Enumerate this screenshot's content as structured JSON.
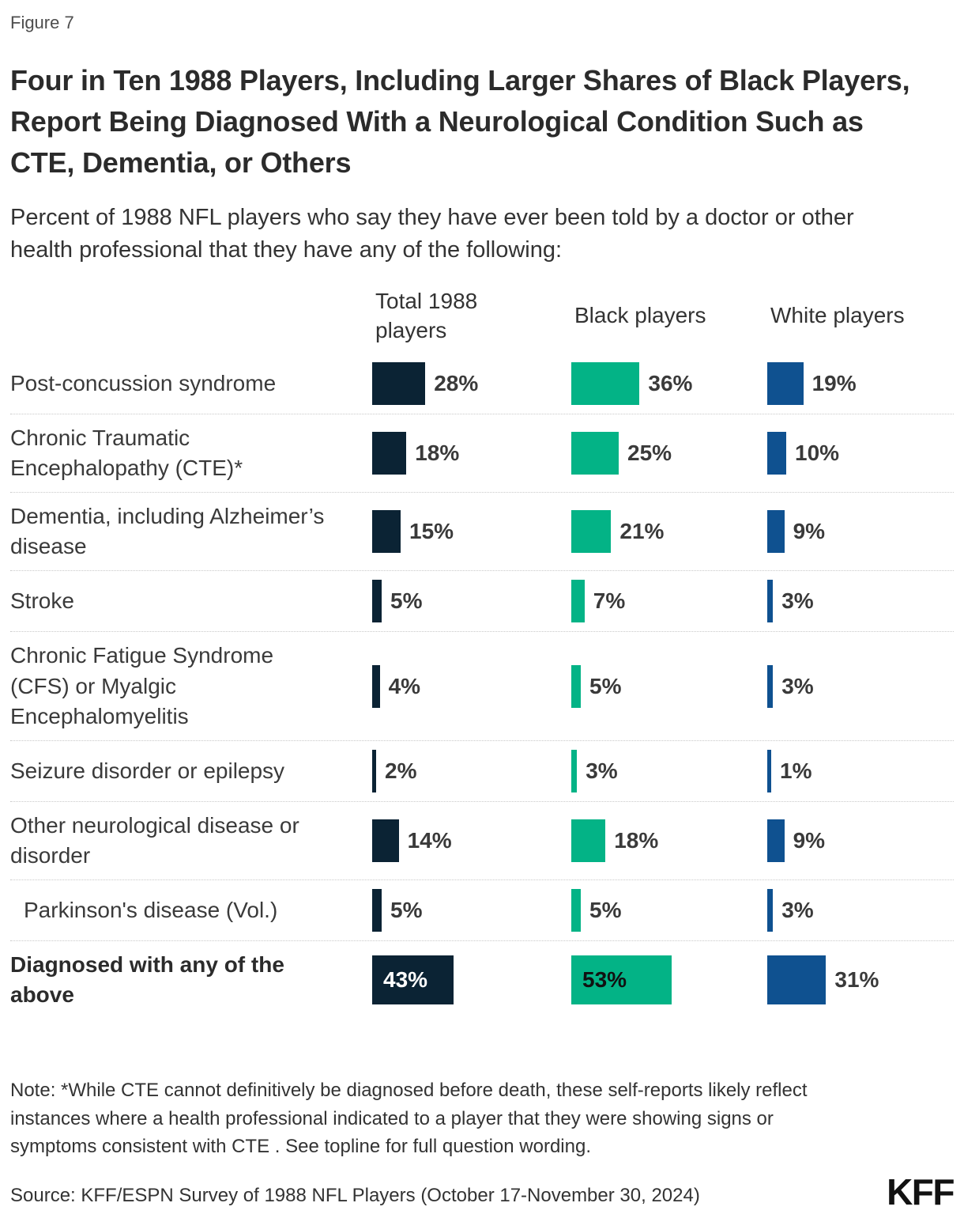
{
  "figure_label": "Figure 7",
  "title": "Four in Ten 1988 Players, Including Larger Shares of Black Players, Report Being Diagnosed With a Neurological Condition Such as CTE, Dementia, or Others",
  "subtitle": "Percent of 1988 NFL players who say they have ever been told by a doctor or other health professional that they have any of the following:",
  "chart_data": {
    "type": "bar",
    "orientation": "horizontal",
    "unit": "%",
    "xlim": [
      0,
      100
    ],
    "grid": false,
    "legend_position": "column-headers",
    "columns": [
      "Total 1988 players",
      "Black players",
      "White players"
    ],
    "colors": {
      "total": "#0B2334",
      "black": "#03B386",
      "white": "#0F5190"
    },
    "rows": [
      {
        "label": "Post-concussion syndrome",
        "values": [
          28,
          36,
          19
        ]
      },
      {
        "label": "Chronic Traumatic Encephalopathy (CTE)*",
        "values": [
          18,
          25,
          10
        ]
      },
      {
        "label": "Dementia, including Alzheimer’s disease",
        "values": [
          15,
          21,
          9
        ]
      },
      {
        "label": "Stroke",
        "values": [
          5,
          7,
          3
        ]
      },
      {
        "label": "Chronic Fatigue Syndrome (CFS) or Myalgic Encephalomyelitis",
        "values": [
          4,
          5,
          3
        ]
      },
      {
        "label": "Seizure disorder or epilepsy",
        "values": [
          2,
          3,
          1
        ]
      },
      {
        "label": "Other neurological disease or disorder",
        "values": [
          14,
          18,
          9
        ]
      },
      {
        "label": "Parkinson's disease (Vol.)",
        "values": [
          5,
          5,
          3
        ],
        "indent": true
      },
      {
        "label": "Diagnosed with any of the above",
        "values": [
          43,
          53,
          31
        ],
        "emphasis": true
      }
    ]
  },
  "note": "Note: *While CTE cannot definitively be diagnosed before death, these self-reports likely reflect instances where a health professional indicated to a player that they were showing signs or symptoms consistent with CTE . See topline for full question wording.",
  "source": "Source: KFF/ESPN Survey of 1988 NFL Players (October 17-November 30, 2024)",
  "logo": "KFF"
}
